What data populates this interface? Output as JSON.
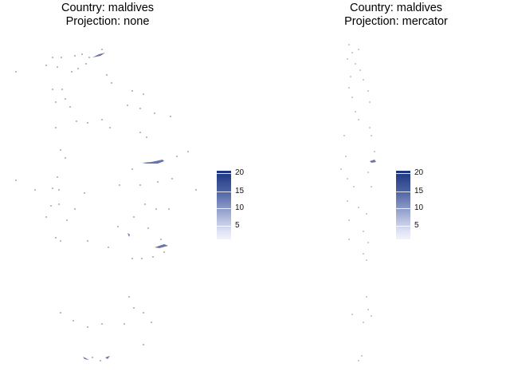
{
  "panels": [
    {
      "title_line1": "Country: maldives",
      "title_line2": "Projection: none"
    },
    {
      "title_line1": "Country: maldives",
      "title_line2": "Projection: mercator"
    }
  ],
  "legend": {
    "ticks": [
      "20",
      "15",
      "10",
      "5"
    ],
    "color_high": "#1a347f",
    "color_low": "#f3f4fb"
  }
}
